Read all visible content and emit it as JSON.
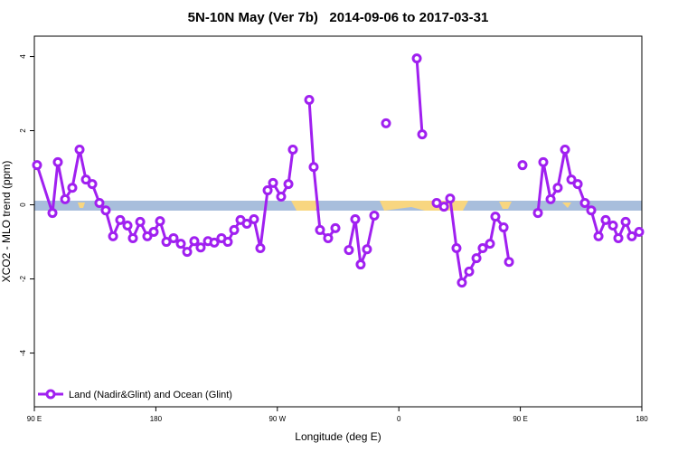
{
  "chart_data": {
    "type": "line",
    "title": "5N-10N May (Ver 7b)   2014-09-06 to 2017-03-31",
    "xlabel": "Longitude (deg E)",
    "ylabel": "XCO2 - MLO trend (ppm)",
    "xlim": [
      90,
      540
    ],
    "ylim": [
      -5.45,
      4.55
    ],
    "xticks": [
      {
        "value": 90,
        "label": "90 E"
      },
      {
        "value": 180,
        "label": "180"
      },
      {
        "value": 270,
        "label": "90 W"
      },
      {
        "value": 360,
        "label": "0"
      },
      {
        "value": 450,
        "label": "90 E"
      },
      {
        "value": 540,
        "label": "180"
      }
    ],
    "yticks": [
      -4,
      -2,
      0,
      2,
      4
    ],
    "legend": "lower left",
    "x": [
      92,
      103.4,
      107.4,
      112.8,
      118.1,
      123.5,
      128.2,
      132.9,
      138.2,
      142.9,
      148.3,
      153.6,
      159,
      163,
      168.4,
      173.7,
      178.4,
      183.1,
      187.8,
      193.1,
      198.5,
      203.2,
      208.5,
      213.2,
      218.6,
      223.3,
      228.6,
      233.3,
      238,
      242.7,
      247.4,
      252.7,
      257.4,
      262.8,
      266.8,
      272.8,
      278.2,
      281.5,
      null,
      293.6,
      296.9,
      301.6,
      307.6,
      313,
      null,
      323,
      327.7,
      331.7,
      336.4,
      341.8,
      null,
      350.5,
      null,
      373.3,
      377.3,
      null,
      388,
      393.4,
      398,
      402.7,
      406.7,
      412.1,
      417.5,
      422.1,
      427.5,
      431.5,
      437.6,
      441.6,
      null,
      451.6,
      null,
      463,
      467,
      472.4,
      477.7,
      483.1,
      487.8,
      492.5,
      497.8,
      502.5,
      507.9,
      513.2,
      518.6,
      522.6,
      528,
      532.6,
      538
    ],
    "series": [
      {
        "name": "Land (Nadir&Glint) and Ocean (Glint)",
        "color": "#a020f0",
        "values": [
          1.07,
          -0.22,
          1.15,
          0.15,
          0.46,
          1.49,
          0.68,
          0.56,
          0.05,
          -0.15,
          -0.85,
          -0.41,
          -0.56,
          -0.9,
          -0.46,
          -0.85,
          -0.73,
          -0.44,
          -1.0,
          -0.9,
          -1.05,
          -1.27,
          -0.98,
          -1.15,
          -0.98,
          -1.02,
          -0.9,
          -1.0,
          -0.68,
          -0.41,
          -0.51,
          -0.39,
          -1.17,
          0.39,
          0.59,
          0.22,
          0.56,
          1.49,
          null,
          2.83,
          1.02,
          -0.68,
          -0.9,
          -0.63,
          null,
          -1.22,
          -0.39,
          -1.61,
          -1.2,
          -0.29,
          null,
          2.2,
          null,
          3.95,
          1.9,
          null,
          0.05,
          -0.05,
          0.17,
          -1.17,
          -2.1,
          -1.8,
          -1.44,
          -1.17,
          -1.05,
          -0.32,
          -0.61,
          -1.54,
          null,
          1.07,
          null,
          -0.22,
          1.15,
          0.15,
          0.46,
          1.49,
          0.68,
          0.56,
          0.05,
          -0.15,
          -0.85,
          -0.41,
          -0.56,
          -0.9,
          -0.46,
          -0.85,
          -0.73
        ]
      }
    ]
  }
}
